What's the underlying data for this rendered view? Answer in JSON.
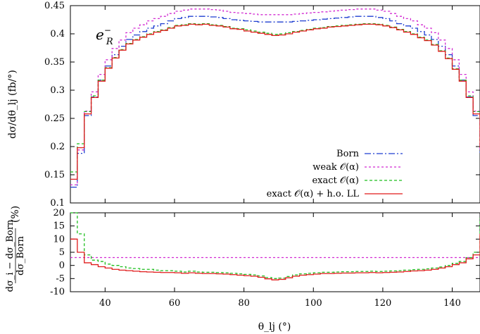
{
  "chart_data": [
    {
      "type": "line",
      "step": true,
      "title": "",
      "ylabel": "dσ/dθ_lj (fb/°)",
      "xlim": [
        30,
        148
      ],
      "ylim": [
        0.1,
        0.45
      ],
      "yticks": [
        0.1,
        0.15,
        0.2,
        0.25,
        0.3,
        0.35,
        0.4,
        0.45
      ],
      "grid": false,
      "legend": "bottom-right",
      "annotation": {
        "text": "e",
        "sup": "−",
        "sub": "R"
      },
      "x": [
        30,
        32,
        34,
        36,
        38,
        40,
        42,
        44,
        46,
        48,
        50,
        52,
        54,
        56,
        58,
        60,
        62,
        64,
        66,
        68,
        70,
        72,
        74,
        76,
        78,
        80,
        82,
        84,
        86,
        88,
        90,
        92,
        94,
        96,
        98,
        100,
        102,
        104,
        106,
        108,
        110,
        112,
        114,
        116,
        118,
        120,
        122,
        124,
        126,
        128,
        130,
        132,
        134,
        136,
        138,
        140,
        142,
        144,
        146,
        148
      ],
      "series": [
        {
          "name": "Born",
          "color": "#1f3fd0",
          "dash": "9,3,2,3",
          "values": [
            0.128,
            0.188,
            0.255,
            0.288,
            0.318,
            0.343,
            0.363,
            0.378,
            0.39,
            0.398,
            0.404,
            0.41,
            0.414,
            0.418,
            0.423,
            0.427,
            0.429,
            0.431,
            0.431,
            0.431,
            0.43,
            0.429,
            0.427,
            0.425,
            0.424,
            0.423,
            0.422,
            0.421,
            0.421,
            0.421,
            0.421,
            0.421,
            0.422,
            0.423,
            0.424,
            0.425,
            0.426,
            0.427,
            0.428,
            0.429,
            0.43,
            0.431,
            0.431,
            0.431,
            0.429,
            0.427,
            0.423,
            0.418,
            0.414,
            0.41,
            0.404,
            0.398,
            0.39,
            0.378,
            0.363,
            0.343,
            0.318,
            0.288,
            0.255,
            0.188
          ]
        },
        {
          "name": "weak 𝒪(α)",
          "color": "#d22bd2",
          "dash": "3,3",
          "values": [
            0.132,
            0.194,
            0.263,
            0.297,
            0.328,
            0.354,
            0.374,
            0.389,
            0.402,
            0.41,
            0.416,
            0.423,
            0.427,
            0.431,
            0.436,
            0.44,
            0.442,
            0.444,
            0.444,
            0.444,
            0.443,
            0.442,
            0.44,
            0.438,
            0.437,
            0.436,
            0.435,
            0.434,
            0.434,
            0.434,
            0.434,
            0.434,
            0.435,
            0.436,
            0.437,
            0.438,
            0.439,
            0.44,
            0.441,
            0.442,
            0.443,
            0.444,
            0.444,
            0.444,
            0.442,
            0.44,
            0.436,
            0.431,
            0.427,
            0.423,
            0.416,
            0.41,
            0.402,
            0.389,
            0.374,
            0.354,
            0.328,
            0.297,
            0.263,
            0.194
          ]
        },
        {
          "name": "exact 𝒪(α)",
          "color": "#1fbf1f",
          "dash": "4,3",
          "values": [
            0.155,
            0.205,
            0.262,
            0.29,
            0.318,
            0.34,
            0.358,
            0.372,
            0.383,
            0.39,
            0.395,
            0.4,
            0.404,
            0.407,
            0.411,
            0.415,
            0.416,
            0.418,
            0.417,
            0.418,
            0.416,
            0.415,
            0.413,
            0.41,
            0.409,
            0.407,
            0.405,
            0.403,
            0.401,
            0.399,
            0.4,
            0.402,
            0.404,
            0.406,
            0.408,
            0.41,
            0.411,
            0.413,
            0.414,
            0.415,
            0.416,
            0.417,
            0.418,
            0.418,
            0.417,
            0.415,
            0.412,
            0.408,
            0.404,
            0.4,
            0.394,
            0.389,
            0.381,
            0.37,
            0.357,
            0.338,
            0.318,
            0.29,
            0.262,
            0.205
          ]
        },
        {
          "name": "exact 𝒪(α) + h.o. LL",
          "color": "#e01b1b",
          "dash": "",
          "values": [
            0.142,
            0.198,
            0.258,
            0.287,
            0.316,
            0.339,
            0.357,
            0.371,
            0.382,
            0.389,
            0.394,
            0.399,
            0.403,
            0.406,
            0.41,
            0.414,
            0.415,
            0.417,
            0.416,
            0.417,
            0.415,
            0.414,
            0.412,
            0.409,
            0.408,
            0.405,
            0.403,
            0.401,
            0.399,
            0.397,
            0.398,
            0.4,
            0.403,
            0.405,
            0.407,
            0.409,
            0.41,
            0.412,
            0.413,
            0.414,
            0.415,
            0.416,
            0.417,
            0.417,
            0.416,
            0.414,
            0.411,
            0.407,
            0.403,
            0.399,
            0.393,
            0.388,
            0.38,
            0.369,
            0.356,
            0.337,
            0.316,
            0.287,
            0.258,
            0.198
          ]
        }
      ]
    },
    {
      "type": "line",
      "step": true,
      "ylabel_num": "dσ_i − dσ_Born",
      "ylabel_den": "dσ_Born",
      "ylabel_unit": "(%)",
      "xlabel": "θ_lj (°)",
      "xlim": [
        30,
        148
      ],
      "ylim": [
        -10,
        20
      ],
      "yticks": [
        -10,
        -5,
        0,
        5,
        10,
        15,
        20
      ],
      "xticks": [
        40,
        60,
        80,
        100,
        120,
        140
      ],
      "x": [
        30,
        32,
        34,
        36,
        38,
        40,
        42,
        44,
        46,
        48,
        50,
        52,
        54,
        56,
        58,
        60,
        62,
        64,
        66,
        68,
        70,
        72,
        74,
        76,
        78,
        80,
        82,
        84,
        86,
        88,
        90,
        92,
        94,
        96,
        98,
        100,
        102,
        104,
        106,
        108,
        110,
        112,
        114,
        116,
        118,
        120,
        122,
        124,
        126,
        128,
        130,
        132,
        134,
        136,
        138,
        140,
        142,
        144,
        146,
        148
      ],
      "series": [
        {
          "name": "weak 𝒪(α)",
          "color": "#d22bd2",
          "dash": "3,3",
          "values": [
            3,
            3,
            3,
            3,
            3,
            3,
            3,
            3,
            3,
            3,
            3,
            3,
            3,
            3,
            3,
            3,
            3,
            3,
            3,
            3,
            3,
            3,
            3,
            3,
            3,
            3,
            3,
            3,
            3,
            3,
            3,
            3,
            3,
            3,
            3,
            3,
            3,
            3,
            3,
            3,
            3,
            3,
            3,
            3,
            3,
            3,
            3,
            3,
            3,
            3,
            3,
            3,
            3,
            3,
            3,
            3,
            3,
            3,
            3,
            3
          ]
        },
        {
          "name": "exact 𝒪(α)",
          "color": "#1fbf1f",
          "dash": "4,3",
          "values": [
            20,
            12,
            4,
            2,
            1.5,
            0.5,
            0,
            -0.5,
            -1,
            -1.2,
            -1.5,
            -1.5,
            -1.8,
            -2,
            -2,
            -2.2,
            -2.5,
            -2.2,
            -2.5,
            -2.6,
            -2.6,
            -2.7,
            -2.8,
            -3,
            -3.2,
            -3.4,
            -3.6,
            -4,
            -4.6,
            -5,
            -4.8,
            -4.2,
            -3.6,
            -3.2,
            -3,
            -2.8,
            -2.6,
            -2.6,
            -2.5,
            -2.4,
            -2.4,
            -2.3,
            -2.3,
            -2.2,
            -2.3,
            -2.2,
            -2.1,
            -2,
            -1.8,
            -1.6,
            -1.5,
            -1.3,
            -1,
            -0.6,
            0,
            0.8,
            1.5,
            3,
            5,
            18
          ]
        },
        {
          "name": "exact 𝒪(α) + h.o. LL",
          "color": "#e01b1b",
          "dash": "",
          "values": [
            10,
            5,
            1,
            0.3,
            -0.5,
            -1,
            -1.5,
            -1.8,
            -2,
            -2.2,
            -2.4,
            -2.5,
            -2.6,
            -2.7,
            -2.7,
            -2.8,
            -3,
            -2.8,
            -3,
            -3.1,
            -3.1,
            -3.2,
            -3.3,
            -3.5,
            -3.7,
            -3.9,
            -4.1,
            -4.5,
            -5.1,
            -5.5,
            -5.3,
            -4.7,
            -4.1,
            -3.7,
            -3.5,
            -3.3,
            -3.1,
            -3.1,
            -3,
            -2.9,
            -2.9,
            -2.8,
            -2.8,
            -2.7,
            -2.8,
            -2.7,
            -2.6,
            -2.5,
            -2.3,
            -2.1,
            -2,
            -1.8,
            -1.5,
            -1,
            -0.5,
            0.3,
            1,
            2.5,
            4,
            12
          ]
        }
      ]
    }
  ]
}
